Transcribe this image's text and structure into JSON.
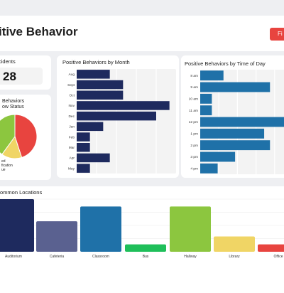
{
  "header": {
    "title": "itive Behavior",
    "filter_label": "Fi"
  },
  "incidents": {
    "title": "cidents",
    "value": "28"
  },
  "workflow": {
    "title_line1": "Behaviors",
    "title_line2": "ow Status",
    "legend": [
      "ed",
      "fication",
      "ue"
    ],
    "colors": {
      "red": "#e8443f",
      "green": "#8cc63f",
      "yellow": "#f0d565"
    }
  },
  "colors": {
    "navy": "#1e2a5e",
    "blue": "#1f71a8",
    "red": "#e8443f",
    "green": "#8cc63f",
    "accent_red": "#e8443f"
  },
  "chart_data": [
    {
      "type": "bar",
      "orientation": "horizontal",
      "title": "Positive Behaviors by Month",
      "categories": [
        "Aug",
        "Sept",
        "Oct",
        "Nov",
        "Dec",
        "Jan",
        "Feb",
        "Mar",
        "Apr",
        "May"
      ],
      "values": [
        5,
        7,
        7,
        14,
        12,
        4,
        2,
        2,
        5,
        2
      ],
      "xlim": [
        0,
        15
      ],
      "grid": true
    },
    {
      "type": "bar",
      "orientation": "horizontal",
      "title": "Positive Behaviors by Time of Day",
      "categories": [
        "8 am",
        "9 am",
        "10 am",
        "11 am",
        "12 pm",
        "1 pm",
        "2 pm",
        "3 pm",
        "4 pm"
      ],
      "values": [
        4,
        12,
        2,
        2,
        15,
        11,
        12,
        6,
        3
      ],
      "xlim": [
        0,
        16
      ],
      "grid": true
    },
    {
      "type": "bar",
      "title": "ommon Locations",
      "categories": [
        "Auditorium",
        "Cafeteria",
        "Classroom",
        "Bus",
        "Hallway",
        "Library",
        "Office"
      ],
      "values": [
        100,
        58,
        86,
        14,
        86,
        29,
        14
      ],
      "colors": [
        "#1e2a5e",
        "#5a6190",
        "#1f71a8",
        "#1fbf5a",
        "#8cc63f",
        "#f0d565",
        "#e8443f"
      ],
      "ylim": [
        0,
        100
      ],
      "grid": true
    },
    {
      "type": "pie",
      "values": [
        45,
        15,
        40
      ],
      "colors": [
        "#e8443f",
        "#f0d565",
        "#8cc63f"
      ]
    }
  ]
}
